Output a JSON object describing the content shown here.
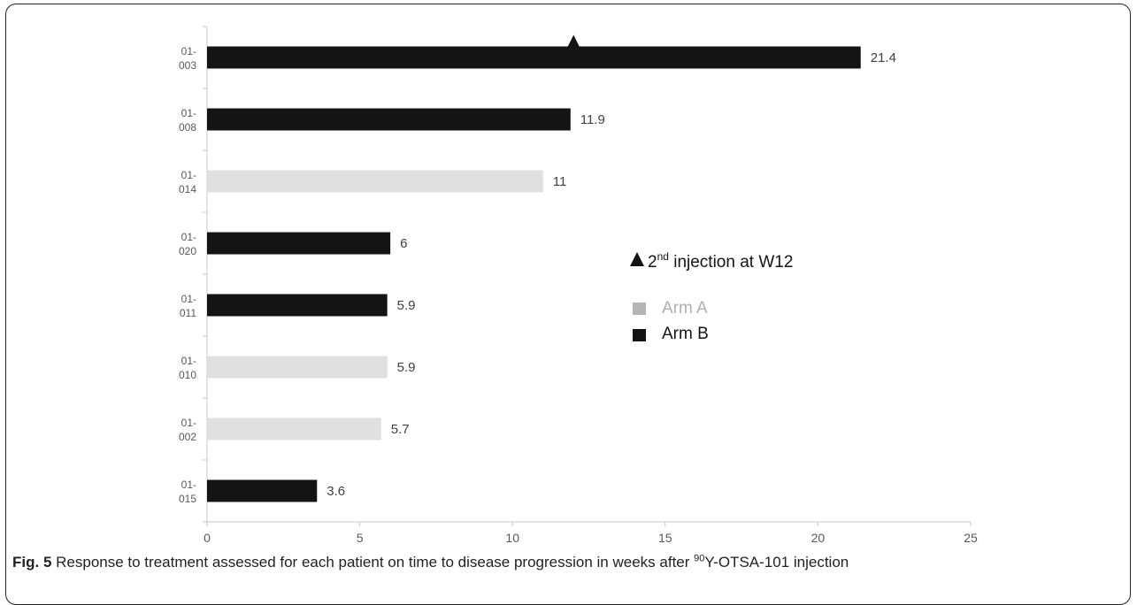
{
  "chart_data": {
    "type": "bar",
    "orientation": "horizontal",
    "categories": [
      [
        "01-",
        "003"
      ],
      [
        "01-",
        "008"
      ],
      [
        "01-",
        "014"
      ],
      [
        "01-",
        "020"
      ],
      [
        "01-",
        "011"
      ],
      [
        "01-",
        "010"
      ],
      [
        "01-",
        "002"
      ],
      [
        "01-",
        "015"
      ]
    ],
    "values": [
      21.4,
      11.9,
      11,
      6,
      5.9,
      5.9,
      5.7,
      3.6
    ],
    "value_labels": [
      "21.4",
      "11.9",
      "11",
      "6",
      "5.9",
      "5.9",
      "5.7",
      "3.6"
    ],
    "arms": [
      "B",
      "B",
      "A",
      "B",
      "B",
      "A",
      "A",
      "B"
    ],
    "xlim": [
      0,
      25
    ],
    "xticks": [
      0,
      5,
      10,
      15,
      20,
      25
    ],
    "xlabel": "",
    "ylabel": "",
    "grid": false,
    "markers": [
      {
        "category_index": 0,
        "x": 12,
        "symbol": "triangle-up"
      }
    ],
    "legend": {
      "placement": "center-right",
      "entries": [
        {
          "symbol": "triangle-up",
          "text": "2",
          "sup": "nd",
          "text_after": " injection at W12"
        },
        {
          "symbol": "square",
          "text": "Arm A",
          "arm": "A"
        },
        {
          "symbol": "square",
          "text": "Arm B",
          "arm": "B"
        }
      ]
    },
    "colors": {
      "A": "#e0e0e0",
      "B": "#141414",
      "legend_A_swatch": "#b5b5b5",
      "legend_A_text": "#b0b0b0",
      "legend_B_text": "#141414",
      "axis": "#c8c8c8",
      "tick_text": "#595959",
      "value_text": "#404040"
    }
  },
  "caption": {
    "label": "Fig. 5",
    "text_before": " Response to treatment assessed for each patient on time to disease progression in weeks after ",
    "sup": "90",
    "text_after": "Y-OTSA-101 injection"
  }
}
